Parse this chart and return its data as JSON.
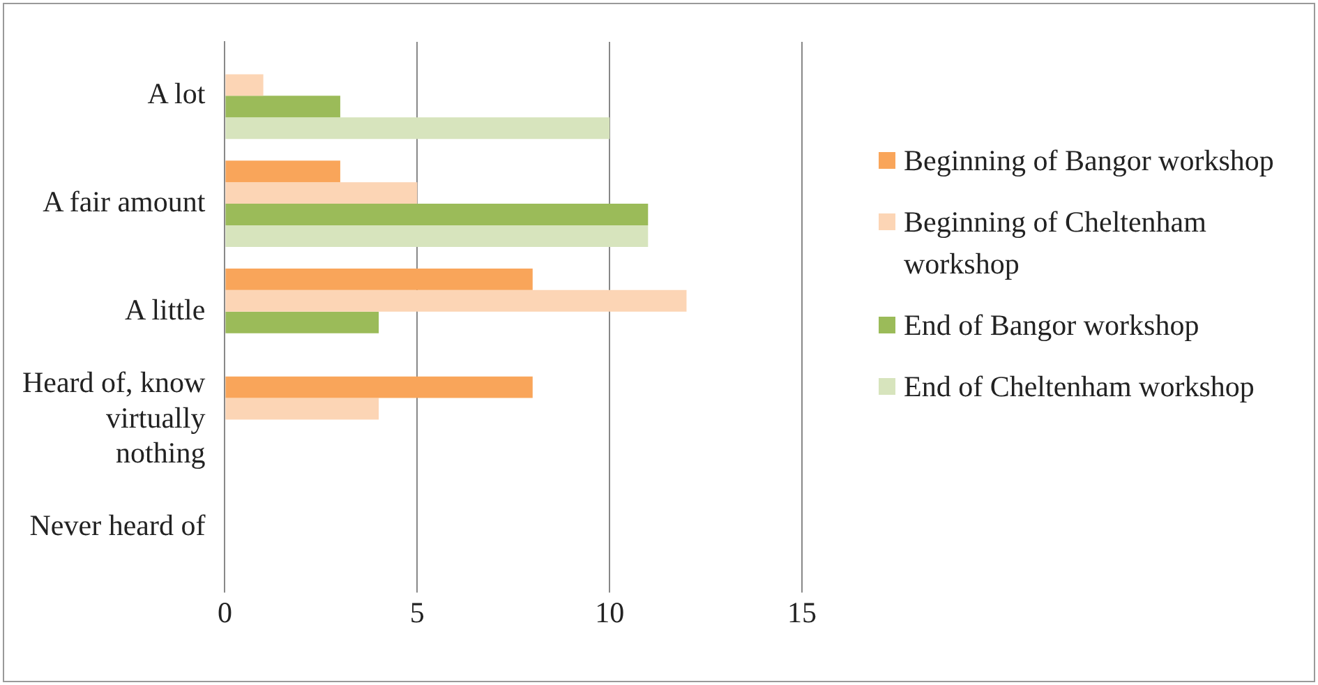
{
  "chart_data": {
    "type": "bar",
    "orientation": "horizontal",
    "categories": [
      "A lot",
      "A fair amount",
      "A little",
      "Heard of, know virtually nothing",
      "Never heard of"
    ],
    "series": [
      {
        "name": "Beginning of Bangor workshop",
        "color": "#f9a55a",
        "values": [
          0,
          3,
          8,
          8,
          0
        ]
      },
      {
        "name": "Beginning of Cheltenham workshop",
        "color": "#fcd5b5",
        "values": [
          1,
          5,
          12,
          4,
          0
        ]
      },
      {
        "name": "End of Bangor workshop",
        "color": "#9bbb59",
        "values": [
          3,
          11,
          4,
          0,
          0
        ]
      },
      {
        "name": "End of Cheltenham workshop",
        "color": "#d7e4bd",
        "values": [
          10,
          11,
          0,
          0,
          0
        ]
      }
    ],
    "xlim": [
      0,
      15
    ],
    "xticks": [
      0,
      5,
      10,
      15
    ],
    "grid": "x",
    "legend": "right"
  }
}
